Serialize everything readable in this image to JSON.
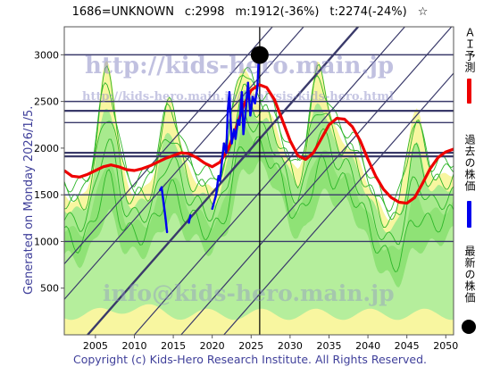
{
  "header": {
    "code_name": "1686=UNKNOWN",
    "current": "c:2998",
    "max_info": "m:1912(-36%)",
    "target_info": "t:2274(-24%)",
    "star": "☆"
  },
  "side_note": "Generated on Monday 2026/1/5.",
  "footer": "Copyright (c) Kids-Hero Research Institute. All Rights Reserved.",
  "legend": {
    "ai_forecast": "ＡＩ予測",
    "past_price": "過去の株価",
    "latest_price": "最新の株価"
  },
  "watermarks": [
    "http://kids-hero.main.jp",
    "http://kids-hero.main.jp/analysis-kids-hero.html",
    "info@kids-hero.main.jp"
  ],
  "colors": {
    "ai_forecast": "#ee0000",
    "past_price": "#0000ee",
    "latest_price": "#000000",
    "band_green": "#55dd44",
    "band_yellow": "#f8f6a0",
    "trend_lines": "#3a3a6a",
    "axis_text": "#3f3f9a"
  },
  "chart_data": {
    "type": "line",
    "xlim": [
      2001,
      2051
    ],
    "ylim": [
      0,
      3300
    ],
    "x_ticks": [
      2005,
      2010,
      2015,
      2020,
      2025,
      2030,
      2035,
      2040,
      2045,
      2050
    ],
    "y_ticks": [
      500,
      1000,
      1500,
      2000,
      2500,
      3000
    ],
    "grid": false,
    "current_year_marker": 2026.1,
    "latest_point": {
      "x": 2026.1,
      "y": 2998
    },
    "horizontal_levels": [
      1000,
      1500,
      1912,
      1950,
      2274,
      2400,
      2500,
      3000
    ],
    "series": [
      {
        "key": "ai_forecast",
        "x": [
          2001,
          2002,
          2003,
          2004,
          2005,
          2006,
          2007,
          2008,
          2009,
          2010,
          2011,
          2012,
          2013,
          2014,
          2015,
          2016,
          2017,
          2018,
          2019,
          2020,
          2021,
          2022,
          2023,
          2024,
          2025,
          2026,
          2027,
          2028,
          2029,
          2030,
          2031,
          2032,
          2033,
          2034,
          2035,
          2036,
          2037,
          2038,
          2039,
          2040,
          2041,
          2042,
          2043,
          2044,
          2045,
          2046,
          2047,
          2048,
          2049,
          2050,
          2051
        ],
        "y": [
          1760,
          1700,
          1690,
          1720,
          1760,
          1800,
          1820,
          1800,
          1770,
          1760,
          1780,
          1810,
          1850,
          1890,
          1920,
          1950,
          1940,
          1900,
          1840,
          1800,
          1850,
          1980,
          2200,
          2450,
          2620,
          2680,
          2650,
          2520,
          2300,
          2080,
          1920,
          1880,
          1950,
          2100,
          2250,
          2320,
          2310,
          2230,
          2080,
          1880,
          1700,
          1560,
          1470,
          1420,
          1410,
          1470,
          1620,
          1780,
          1900,
          1960,
          1990
        ]
      },
      {
        "key": "past_price",
        "x": [
          2013.3,
          2013.5,
          2014.0,
          2014.2,
          2017.0,
          2017.2,
          2020.0,
          2020.5,
          2020.8,
          2021.0,
          2021.3,
          2021.5,
          2021.8,
          2022.0,
          2022.2,
          2022.5,
          2022.8,
          2023.0,
          2023.3,
          2023.5,
          2023.8,
          2024.0,
          2024.3,
          2024.6,
          2024.9,
          2025.2,
          2025.5,
          2025.8,
          2026.0
        ],
        "y": [
          1550,
          1580,
          1250,
          1100,
          1200,
          1280,
          1350,
          1500,
          1700,
          1650,
          1900,
          2050,
          1950,
          2400,
          2600,
          2050,
          2200,
          2100,
          2300,
          2250,
          2600,
          2150,
          2400,
          2700,
          2350,
          2550,
          2480,
          2650,
          2998
        ]
      }
    ]
  }
}
